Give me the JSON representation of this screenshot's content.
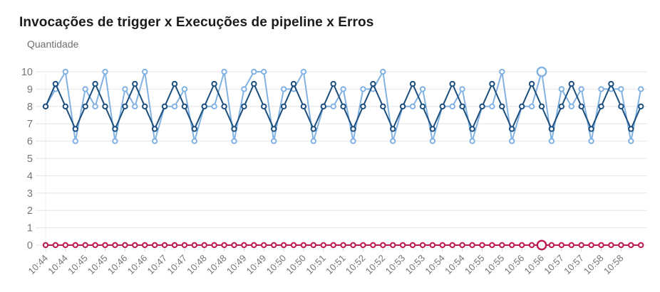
{
  "title": "Invocações de trigger x Execuções de pipeline x Erros",
  "y_axis_label": "Quantidade",
  "colors": {
    "trigger_series": "#82b2e2",
    "pipeline_series": "#1d4e7c",
    "errors_series": "#bd1a55",
    "gridline": "#e4e4e4",
    "axis_text": "#757575",
    "title_text": "#1b1b1b"
  },
  "chart_data": {
    "type": "line",
    "title": "Invocações de trigger x Execuções de pipeline x Erros",
    "ylabel": "Quantidade",
    "xlabel": "",
    "ylim": [
      0,
      10
    ],
    "y_ticks": [
      10,
      9,
      8,
      7,
      6,
      5,
      4,
      3,
      2,
      1,
      0
    ],
    "grid": "horizontal",
    "legend_position": "none",
    "x_labels": [
      "10:44",
      "10:44",
      "10:45",
      "10:45",
      "10:46",
      "10:46",
      "10:47",
      "10:47",
      "10:48",
      "10:48",
      "10:49",
      "10:49",
      "10:50",
      "10:50",
      "10:51",
      "10:51",
      "10:52",
      "10:52",
      "10:53",
      "10:53",
      "10:54",
      "10:54",
      "10:55",
      "10:55",
      "10:56",
      "10:56",
      "10:57",
      "10:57",
      "10:58",
      "10:58"
    ],
    "points_per_label_interval": 2,
    "series": [
      {
        "name": "Invocações de trigger",
        "id": "trigger",
        "color": "#82b2e2",
        "highlight_index": 50,
        "values": [
          8,
          9,
          10,
          6,
          9,
          8,
          10,
          6,
          9,
          8,
          10,
          6,
          8,
          8,
          9,
          6,
          8,
          8,
          10,
          6,
          9,
          10,
          10,
          6,
          9,
          9,
          10,
          6,
          8,
          8,
          9,
          6,
          9,
          9,
          10,
          6,
          8,
          8,
          9,
          6,
          8,
          8,
          9,
          6,
          8,
          8,
          10,
          6,
          8,
          8,
          10,
          6,
          9,
          8,
          9,
          6,
          9,
          9,
          9,
          6,
          9
        ]
      },
      {
        "name": "Execuções de pipeline",
        "id": "pipeline",
        "color": "#1d4e7c",
        "highlight_index": null,
        "values": [
          8,
          9.3,
          8,
          6.7,
          8,
          9.3,
          8,
          6.7,
          8,
          9.3,
          8,
          6.7,
          8,
          9.3,
          8,
          6.7,
          8,
          9.3,
          8,
          6.7,
          8,
          9.3,
          8,
          6.7,
          8,
          9.3,
          8,
          6.7,
          8,
          9.3,
          8,
          6.7,
          8,
          9.3,
          8,
          6.7,
          8,
          9.3,
          8,
          6.7,
          8,
          9.3,
          8,
          6.7,
          8,
          9.3,
          8,
          6.7,
          8,
          9.3,
          8,
          6.7,
          8,
          9.3,
          8,
          6.7,
          8,
          9.3,
          8,
          6.7,
          8
        ]
      },
      {
        "name": "Erros",
        "id": "errors",
        "color": "#bd1a55",
        "highlight_index": 50,
        "values": [
          0,
          0,
          0,
          0,
          0,
          0,
          0,
          0,
          0,
          0,
          0,
          0,
          0,
          0,
          0,
          0,
          0,
          0,
          0,
          0,
          0,
          0,
          0,
          0,
          0,
          0,
          0,
          0,
          0,
          0,
          0,
          0,
          0,
          0,
          0,
          0,
          0,
          0,
          0,
          0,
          0,
          0,
          0,
          0,
          0,
          0,
          0,
          0,
          0,
          0,
          0,
          0,
          0,
          0,
          0,
          0,
          0,
          0,
          0,
          0,
          0
        ]
      }
    ]
  }
}
